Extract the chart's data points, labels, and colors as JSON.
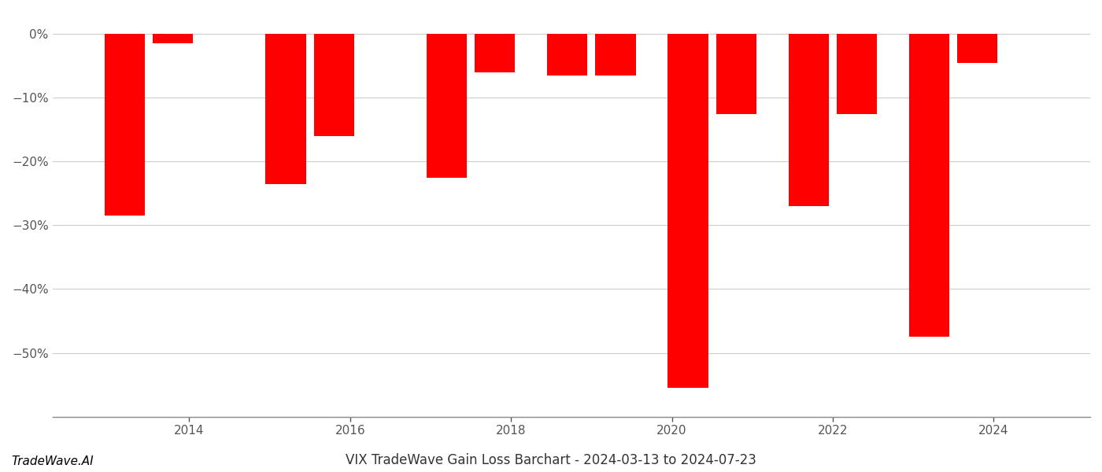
{
  "bar_positions": [
    2013.2,
    2013.8,
    2015.2,
    2015.8,
    2017.2,
    2017.8,
    2018.7,
    2019.3,
    2020.2,
    2020.8,
    2021.7,
    2022.3,
    2023.2,
    2023.8
  ],
  "values": [
    -28.5,
    -1.5,
    -23.5,
    -16.0,
    -22.5,
    -6.0,
    -6.5,
    -6.5,
    -55.5,
    -12.5,
    -27.0,
    -12.5,
    -47.5,
    -4.5
  ],
  "bar_color": "#ff0000",
  "background_color": "#ffffff",
  "grid_color": "#cccccc",
  "axis_color": "#888888",
  "tick_color": "#555555",
  "ylim": [
    -60,
    2
  ],
  "yticks": [
    0,
    -10,
    -20,
    -30,
    -40,
    -50
  ],
  "bar_width": 0.5,
  "xlim": [
    2012.3,
    2025.2
  ],
  "xticks": [
    2014,
    2016,
    2018,
    2020,
    2022,
    2024
  ],
  "title": "VIX TradeWave Gain Loss Barchart - 2024-03-13 to 2024-07-23",
  "watermark": "TradeWave.AI",
  "title_fontsize": 12,
  "watermark_fontsize": 11,
  "tick_fontsize": 11
}
